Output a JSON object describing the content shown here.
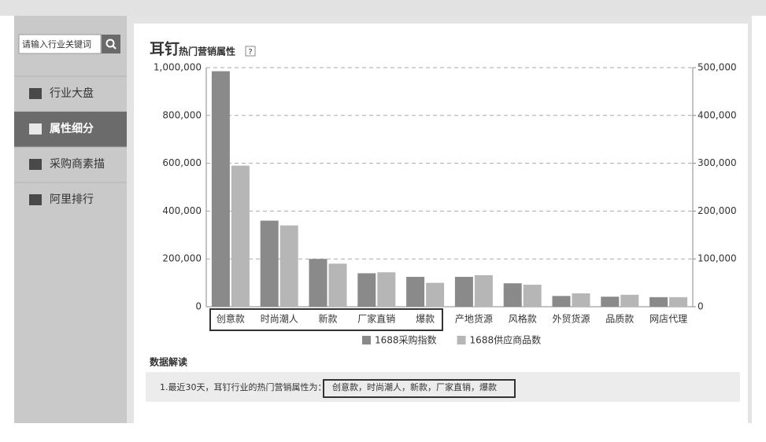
{
  "sidebar": {
    "search_placeholder": "请输入行业关键词",
    "menu": [
      {
        "label": "行业大盘",
        "active": false
      },
      {
        "label": "属性细分",
        "active": true
      },
      {
        "label": "采购商素描",
        "active": false
      },
      {
        "label": "阿里排行",
        "active": false
      }
    ]
  },
  "chart_data": {
    "type": "bar",
    "title": "耳钉",
    "subtitle": "热门营销属性",
    "help": "?",
    "categories": [
      "创意款",
      "时尚潮人",
      "新款",
      "厂家直销",
      "爆款",
      "产地货源",
      "风格款",
      "外贸货源",
      "品质款",
      "网店代理"
    ],
    "series": [
      {
        "name": "1688采购指数",
        "color": "#8a8a8a",
        "values": [
          985000,
          360000,
          200000,
          140000,
          125000,
          125000,
          98000,
          45000,
          42000,
          40000
        ]
      },
      {
        "name": "1688供应商品数",
        "color": "#b6b6b6",
        "axis": "y2",
        "values": [
          295000,
          170000,
          90000,
          72000,
          50000,
          66000,
          46000,
          28000,
          25000,
          20000
        ]
      }
    ],
    "ylim": [
      0,
      1000000
    ],
    "yticks": [
      0,
      {
        "value": 200000,
        "label": "200,000"
      },
      {
        "value": 400000,
        "label": "400,000"
      },
      {
        "value": 600000,
        "label": "600,000"
      },
      {
        "value": 800000,
        "label": "800,000"
      },
      {
        "value": 1000000,
        "label": "1,000,000"
      }
    ],
    "y2lim": [
      0,
      500000
    ],
    "y2ticks": [
      0,
      {
        "value": 100000,
        "label": "100,000"
      },
      {
        "value": 200000,
        "label": "200,000"
      },
      {
        "value": 300000,
        "label": "300,000"
      },
      {
        "value": 400000,
        "label": "400,000"
      },
      {
        "value": 500000,
        "label": "500,000"
      }
    ],
    "grid": true,
    "legend": "bottom"
  },
  "analysis": {
    "heading": "数据解读",
    "text": "1.最近30天，耳钉行业的热门营销属性为：",
    "highlight": "创意款，时尚潮人，新款，厂家直销，爆款"
  }
}
